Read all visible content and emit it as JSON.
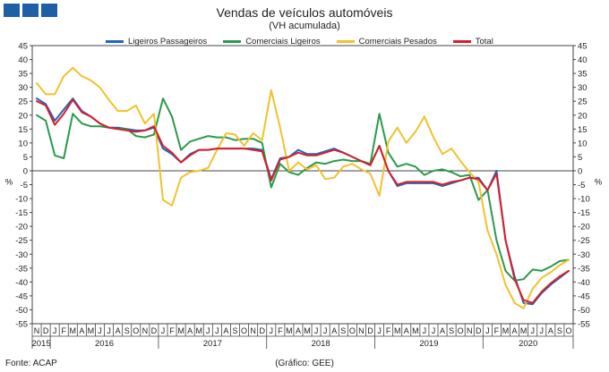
{
  "header": {
    "title": "Vendas de veículos automóveis",
    "subtitle": "(VH acumulada)"
  },
  "footer": {
    "source": "Fonte: ACAP",
    "credit": "(Gráfico: GEE)"
  },
  "chart_data": {
    "type": "line",
    "title": "Vendas de veículos automóveis",
    "subtitle": "(VH acumulada)",
    "ylabel": "%",
    "ylim": [
      -55,
      45
    ],
    "y_ticks": [
      45,
      40,
      35,
      30,
      25,
      20,
      15,
      10,
      5,
      0,
      -5,
      -10,
      -15,
      -20,
      -25,
      -30,
      -35,
      -40,
      -45,
      -50,
      -55
    ],
    "grid": false,
    "legend_position": "top",
    "x_month_labels": [
      "N",
      "D",
      "J",
      "F",
      "M",
      "A",
      "M",
      "J",
      "J",
      "A",
      "S",
      "O",
      "N",
      "D",
      "J",
      "F",
      "M",
      "A",
      "M",
      "J",
      "J",
      "A",
      "S",
      "O",
      "N",
      "D",
      "J",
      "F",
      "M",
      "A",
      "M",
      "J",
      "J",
      "A",
      "S",
      "O",
      "N",
      "D",
      "J",
      "F",
      "M",
      "A",
      "M",
      "J",
      "J",
      "A",
      "S",
      "O",
      "N",
      "D",
      "J",
      "F",
      "M",
      "A",
      "M",
      "J",
      "J",
      "A",
      "S",
      "O"
    ],
    "x_year_labels": [
      {
        "label": "2015",
        "start": 0,
        "end": 1
      },
      {
        "label": "2016",
        "start": 2,
        "end": 13
      },
      {
        "label": "2017",
        "start": 14,
        "end": 25
      },
      {
        "label": "2018",
        "start": 26,
        "end": 37
      },
      {
        "label": "2019",
        "start": 38,
        "end": 49
      },
      {
        "label": "2020",
        "start": 50,
        "end": 59
      }
    ],
    "series": [
      {
        "name": "Ligeiros Passageiros",
        "color": "#2266bb",
        "values": [
          26,
          24,
          18,
          22,
          26,
          21.5,
          19.5,
          17,
          15.5,
          15.5,
          15,
          14.5,
          14.5,
          15.5,
          8,
          6,
          3,
          6,
          7.5,
          7.5,
          8,
          8,
          8,
          8,
          8,
          7.5,
          -3,
          4.5,
          5,
          7.5,
          6,
          6,
          7,
          8,
          6.5,
          5,
          3.5,
          2,
          9,
          0,
          -5.5,
          -4.5,
          -4.5,
          -4.5,
          -4.5,
          -5.5,
          -4.5,
          -3.5,
          -2.5,
          -2.5,
          -7,
          0,
          -25,
          -38,
          -47.5,
          -48,
          -44,
          -41,
          -38.5,
          -36
        ]
      },
      {
        "name": "Comerciais Ligeiros",
        "color": "#2a9a4a",
        "values": [
          20,
          18,
          5.5,
          4.5,
          20.5,
          17,
          16,
          16,
          15.5,
          15,
          15,
          12.5,
          12,
          13,
          26,
          19.5,
          7.5,
          10.5,
          11.5,
          12.5,
          12,
          12,
          11,
          11.5,
          11.5,
          10,
          -6,
          2.5,
          -0.5,
          -1.5,
          1,
          3,
          2.5,
          3.5,
          4,
          3.5,
          3.5,
          2.5,
          20.5,
          6.5,
          1.5,
          2.5,
          1.5,
          -1.5,
          0,
          0.5,
          -0.5,
          -2,
          -1.5,
          -10.5,
          -7,
          -25,
          -36,
          -39.5,
          -39,
          -35.5,
          -36,
          -34.5,
          -32.5,
          -32
        ]
      },
      {
        "name": "Comerciais Pesados",
        "color": "#f2c12e",
        "values": [
          31.5,
          27.5,
          27.5,
          34,
          37,
          34,
          32.5,
          30,
          25.5,
          21.5,
          21.5,
          23.5,
          17,
          20.5,
          -10.5,
          -12.5,
          -2.5,
          -0.5,
          0,
          1,
          7.5,
          13.5,
          13,
          9,
          13.5,
          11,
          29,
          15.5,
          0,
          3,
          0.5,
          2,
          -3,
          -2.5,
          1.5,
          2.5,
          0.5,
          -1,
          -9,
          10.5,
          15.5,
          10,
          14,
          19.5,
          12,
          6,
          8,
          3.5,
          -0.5,
          -4,
          -21.5,
          -30,
          -41,
          -47.5,
          -49.5,
          -42.5,
          -38.5,
          -36.5,
          -34,
          -32
        ]
      },
      {
        "name": "Total",
        "color": "#d81e2a",
        "values": [
          25,
          23.5,
          16.5,
          20.5,
          25.5,
          21,
          19.5,
          17,
          15.5,
          15,
          14.5,
          14,
          14.5,
          16,
          9,
          6.5,
          3,
          5.5,
          7.5,
          7.5,
          8,
          8,
          8,
          8,
          7.5,
          7,
          -3.5,
          4,
          5,
          6.5,
          5.5,
          5.5,
          6.5,
          7.5,
          6.5,
          5,
          3.5,
          2,
          9,
          0,
          -5,
          -4,
          -4,
          -4,
          -4,
          -5,
          -4,
          -3.5,
          -2.5,
          -3,
          -7,
          -1,
          -25,
          -39,
          -46.5,
          -47.5,
          -43.5,
          -40.5,
          -38,
          -36
        ]
      }
    ]
  }
}
